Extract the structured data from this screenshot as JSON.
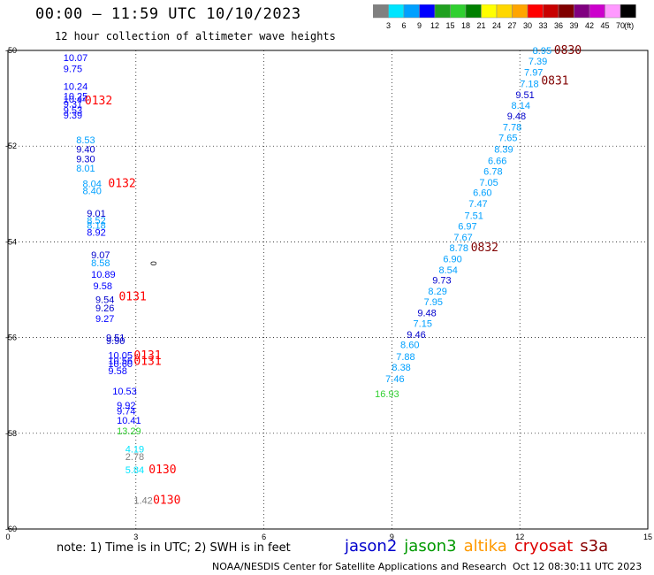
{
  "header": {
    "title": "00:00 – 11:59 UTC 10/10/2023",
    "subtitle": "12 hour collection of altimeter wave heights"
  },
  "legend": {
    "unit": "(ft)",
    "labels": [
      "3",
      "6",
      "9",
      "12",
      "15",
      "18",
      "21",
      "24",
      "27",
      "30",
      "33",
      "36",
      "39",
      "42",
      "45",
      "70"
    ],
    "colors": [
      "#808080",
      "#00e5ff",
      "#00a0ff",
      "#0000ff",
      "#20a020",
      "#30d030",
      "#008000",
      "#ffff00",
      "#ffd700",
      "#ffa500",
      "#ff0000",
      "#c80000",
      "#800000",
      "#800080",
      "#cc00cc",
      "#ff99ff",
      "#000000"
    ]
  },
  "footer": {
    "note": "note: 1) Time is in UTC; 2) SWH is in feet",
    "credit": "NOAA/NESDIS Center for Satellite Applications and Research",
    "generated": "Oct 12 08:30:11 UTC 2023"
  },
  "satellites": [
    {
      "name": "jason2",
      "color": "#0000cc"
    },
    {
      "name": "jason3",
      "color": "#009900"
    },
    {
      "name": "altika",
      "color": "#ff9900"
    },
    {
      "name": "cryosat",
      "color": "#dd0000"
    },
    {
      "name": "s3a",
      "color": "#880000"
    }
  ],
  "chart_data": {
    "type": "scatter",
    "title": "12 hour collection of altimeter wave heights",
    "xlim": [
      0,
      15
    ],
    "ylim": [
      -60,
      -50
    ],
    "x_ticks": [
      0,
      3,
      6,
      9,
      12,
      15
    ],
    "y_ticks": [
      -50,
      -52,
      -54,
      -56,
      -58,
      -60
    ],
    "x_tick_labels": [
      "0",
      "3",
      "6",
      "9",
      "12",
      "15"
    ],
    "y_tick_labels": [
      "-50",
      "-52",
      "-54",
      "-56",
      "-58",
      "-60"
    ],
    "grid": true,
    "stray_labels": [
      {
        "text": "0",
        "x": 3.35,
        "y": -54.45,
        "color": "#000000",
        "rotate": 90
      }
    ],
    "series": [
      {
        "name": "swh",
        "points": [
          {
            "x": 1.3,
            "y": -50.15,
            "v": "10.07",
            "c": "#0000ff"
          },
          {
            "x": 1.3,
            "y": -50.38,
            "v": "9.75",
            "c": "#0000ff"
          },
          {
            "x": 1.3,
            "y": -50.75,
            "v": "10.24",
            "c": "#0000ff"
          },
          {
            "x": 1.3,
            "y": -50.95,
            "v": "10.25",
            "c": "#0000ff"
          },
          {
            "x": 1.3,
            "y": -51.02,
            "v": "10.44",
            "c": "#0000ff"
          },
          {
            "x": 1.3,
            "y": -51.12,
            "v": "9.31",
            "c": "#0000ff"
          },
          {
            "x": 1.3,
            "y": -51.25,
            "v": "9.53",
            "c": "#0000ff"
          },
          {
            "x": 1.3,
            "y": -51.35,
            "v": "9.39",
            "c": "#0000ff"
          },
          {
            "x": 1.6,
            "y": -51.87,
            "v": "8.53",
            "c": "#00a0ff"
          },
          {
            "x": 1.6,
            "y": -52.06,
            "v": "9.40",
            "c": "#0000cc"
          },
          {
            "x": 1.6,
            "y": -52.26,
            "v": "9.30",
            "c": "#0000cc"
          },
          {
            "x": 1.6,
            "y": -52.46,
            "v": "8.01",
            "c": "#00a0ff"
          },
          {
            "x": 1.75,
            "y": -52.78,
            "v": "8.04",
            "c": "#00a0ff"
          },
          {
            "x": 1.75,
            "y": -52.93,
            "v": "8.40",
            "c": "#00a0ff"
          },
          {
            "x": 1.85,
            "y": -53.4,
            "v": "9.01",
            "c": "#0000cc"
          },
          {
            "x": 1.85,
            "y": -53.55,
            "v": "8.52",
            "c": "#00a0ff"
          },
          {
            "x": 1.85,
            "y": -53.65,
            "v": "8.18",
            "c": "#00a0ff"
          },
          {
            "x": 1.85,
            "y": -53.8,
            "v": "8.92",
            "c": "#0000ff"
          },
          {
            "x": 1.95,
            "y": -54.27,
            "v": "9.07",
            "c": "#0000cc"
          },
          {
            "x": 1.95,
            "y": -54.44,
            "v": "8.58",
            "c": "#00a0ff"
          },
          {
            "x": 1.95,
            "y": -54.68,
            "v": "10.89",
            "c": "#0000ff"
          },
          {
            "x": 2.0,
            "y": -54.92,
            "v": "9.58",
            "c": "#0000ff"
          },
          {
            "x": 2.05,
            "y": -55.2,
            "v": "9.54",
            "c": "#0000cc"
          },
          {
            "x": 2.05,
            "y": -55.38,
            "v": "9.26",
            "c": "#0000cc"
          },
          {
            "x": 2.05,
            "y": -55.6,
            "v": "9.27",
            "c": "#0000ff"
          },
          {
            "x": 2.3,
            "y": -56.0,
            "v": "9.51",
            "c": "#0000cc"
          },
          {
            "x": 2.3,
            "y": -56.06,
            "v": "9.90",
            "c": "#0000cc"
          },
          {
            "x": 2.35,
            "y": -56.37,
            "v": "10.05",
            "c": "#0000ff"
          },
          {
            "x": 2.35,
            "y": -56.48,
            "v": "10.56",
            "c": "#0000ff"
          },
          {
            "x": 2.35,
            "y": -56.54,
            "v": "10.60",
            "c": "#0000ff"
          },
          {
            "x": 2.35,
            "y": -56.69,
            "v": "9.58",
            "c": "#0000ff"
          },
          {
            "x": 2.45,
            "y": -57.12,
            "v": "10.53",
            "c": "#0000ff"
          },
          {
            "x": 2.55,
            "y": -57.41,
            "v": "9.92",
            "c": "#0000ff"
          },
          {
            "x": 2.55,
            "y": -57.53,
            "v": "9.74",
            "c": "#0000ff"
          },
          {
            "x": 2.55,
            "y": -57.73,
            "v": "10.41",
            "c": "#0000ff"
          },
          {
            "x": 2.55,
            "y": -57.95,
            "v": "13.29",
            "c": "#30d030"
          },
          {
            "x": 2.75,
            "y": -58.33,
            "v": "4.19",
            "c": "#00e5ff"
          },
          {
            "x": 2.75,
            "y": -58.48,
            "v": "2.78",
            "c": "#808080"
          },
          {
            "x": 2.75,
            "y": -58.76,
            "v": "5.84",
            "c": "#00e5ff"
          },
          {
            "x": 2.95,
            "y": -59.4,
            "v": "1.42",
            "c": "#808080"
          },
          {
            "x": 8.6,
            "y": -57.17,
            "v": "16.93",
            "c": "#30d030"
          },
          {
            "x": 8.85,
            "y": -56.86,
            "v": "7.46",
            "c": "#00a0ff"
          },
          {
            "x": 9.0,
            "y": -56.62,
            "v": "8.38",
            "c": "#00a0ff"
          },
          {
            "x": 9.1,
            "y": -56.4,
            "v": "7.88",
            "c": "#00a0ff"
          },
          {
            "x": 9.2,
            "y": -56.15,
            "v": "8.60",
            "c": "#00a0ff"
          },
          {
            "x": 9.35,
            "y": -55.93,
            "v": "9.46",
            "c": "#0000cc"
          },
          {
            "x": 9.5,
            "y": -55.7,
            "v": "7.15",
            "c": "#00a0ff"
          },
          {
            "x": 9.6,
            "y": -55.48,
            "v": "9.48",
            "c": "#0000cc"
          },
          {
            "x": 9.75,
            "y": -55.25,
            "v": "7.95",
            "c": "#00a0ff"
          },
          {
            "x": 9.85,
            "y": -55.03,
            "v": "8.29",
            "c": "#00a0ff"
          },
          {
            "x": 9.95,
            "y": -54.8,
            "v": "9.73",
            "c": "#0000cc"
          },
          {
            "x": 10.1,
            "y": -54.58,
            "v": "8.54",
            "c": "#00a0ff"
          },
          {
            "x": 10.2,
            "y": -54.35,
            "v": "6.90",
            "c": "#00a0ff"
          },
          {
            "x": 10.35,
            "y": -54.12,
            "v": "8.78",
            "c": "#00a0ff"
          },
          {
            "x": 10.45,
            "y": -53.9,
            "v": "7.67",
            "c": "#00a0ff"
          },
          {
            "x": 10.55,
            "y": -53.67,
            "v": "6.97",
            "c": "#00a0ff"
          },
          {
            "x": 10.7,
            "y": -53.45,
            "v": "7.51",
            "c": "#00a0ff"
          },
          {
            "x": 10.8,
            "y": -53.2,
            "v": "7.47",
            "c": "#00a0ff"
          },
          {
            "x": 10.9,
            "y": -52.97,
            "v": "6.60",
            "c": "#00a0ff"
          },
          {
            "x": 11.05,
            "y": -52.75,
            "v": "7.05",
            "c": "#00a0ff"
          },
          {
            "x": 11.15,
            "y": -52.52,
            "v": "6.78",
            "c": "#00a0ff"
          },
          {
            "x": 11.25,
            "y": -52.3,
            "v": "6.66",
            "c": "#00a0ff"
          },
          {
            "x": 11.4,
            "y": -52.06,
            "v": "8.39",
            "c": "#00a0ff"
          },
          {
            "x": 11.5,
            "y": -51.82,
            "v": "7.65",
            "c": "#00a0ff"
          },
          {
            "x": 11.6,
            "y": -51.6,
            "v": "7.78",
            "c": "#00a0ff"
          },
          {
            "x": 11.7,
            "y": -51.37,
            "v": "9.48",
            "c": "#0000cc"
          },
          {
            "x": 11.8,
            "y": -51.15,
            "v": "8.14",
            "c": "#00a0ff"
          },
          {
            "x": 11.9,
            "y": -50.92,
            "v": "9.51",
            "c": "#0000cc"
          },
          {
            "x": 12.0,
            "y": -50.69,
            "v": "7.18",
            "c": "#00a0ff"
          },
          {
            "x": 12.1,
            "y": -50.45,
            "v": "7.97",
            "c": "#00a0ff"
          },
          {
            "x": 12.2,
            "y": -50.22,
            "v": "7.39",
            "c": "#00a0ff"
          },
          {
            "x": 12.3,
            "y": -50.0,
            "v": "8.95",
            "c": "#00a0ff"
          }
        ]
      },
      {
        "name": "time",
        "points": [
          {
            "x": 1.8,
            "y": -51.05,
            "v": "0132",
            "c": "#ff0000"
          },
          {
            "x": 2.35,
            "y": -52.78,
            "v": "0132",
            "c": "#ff0000"
          },
          {
            "x": 2.6,
            "y": -55.15,
            "v": "0131",
            "c": "#ff0000"
          },
          {
            "x": 2.95,
            "y": -56.38,
            "v": "0131",
            "c": "#ff0000"
          },
          {
            "x": 2.95,
            "y": -56.5,
            "v": "0131",
            "c": "#ff0000"
          },
          {
            "x": 3.3,
            "y": -58.76,
            "v": "0130",
            "c": "#ff0000"
          },
          {
            "x": 3.4,
            "y": -59.4,
            "v": "0130",
            "c": "#ff0000"
          },
          {
            "x": 12.8,
            "y": -50.0,
            "v": "0830",
            "c": "#800000"
          },
          {
            "x": 12.5,
            "y": -50.64,
            "v": "0831",
            "c": "#800000"
          },
          {
            "x": 10.85,
            "y": -54.12,
            "v": "0832",
            "c": "#800000"
          }
        ]
      }
    ]
  }
}
